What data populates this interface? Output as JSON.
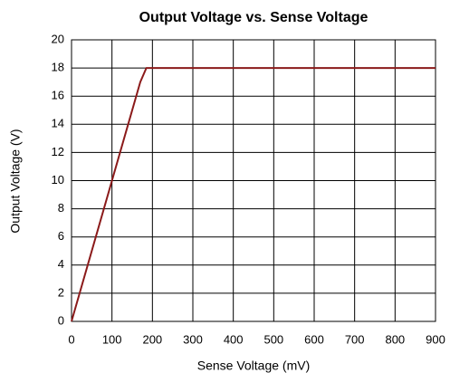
{
  "chart_data": {
    "type": "line",
    "title": "Output Voltage vs. Sense Voltage",
    "x_label": "Sense Voltage (mV)",
    "y_label": "Output Voltage (V)",
    "x": [
      0,
      100,
      170,
      185,
      900
    ],
    "series": [
      {
        "color": "#8b1a1a",
        "values": [
          0,
          10,
          17,
          18,
          18
        ]
      }
    ],
    "xlim": [
      0,
      900
    ],
    "xticks": [
      0,
      100,
      200,
      300,
      400,
      500,
      600,
      700,
      800,
      900
    ],
    "ylim": [
      0,
      20
    ],
    "yticks": [
      0,
      2,
      4,
      6,
      8,
      10,
      12,
      14,
      16,
      18,
      20
    ],
    "grid": true
  }
}
